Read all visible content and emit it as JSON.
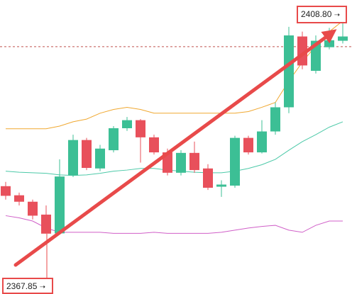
{
  "chart_data": {
    "type": "candlestick",
    "ylim": [
      2356.6,
      2411.4
    ],
    "up_color": "#3cbf95",
    "down_color": "#e8505b",
    "open": [
      2376.7,
      2375.0,
      2373.8,
      2371.4,
      2367.9,
      2378.7,
      2385.3,
      2380.0,
      2383.4,
      2387.5,
      2389.0,
      2385.8,
      2383.0,
      2379.2,
      2382.9,
      2380.0,
      2376.6,
      2376.8,
      2385.7,
      2383.0,
      2386.9,
      2391.4,
      2404.6,
      2398.2,
      2402.6,
      2403.8
    ],
    "high": [
      2377.5,
      2375.5,
      2374.2,
      2373.1,
      2381.7,
      2386.3,
      2385.7,
      2384.4,
      2387.9,
      2389.6,
      2389.2,
      2386.3,
      2383.7,
      2383.4,
      2385.0,
      2380.8,
      2377.8,
      2386.1,
      2386.1,
      2389.0,
      2392.3,
      2406.4,
      2405.5,
      2404.8,
      2406.2,
      2408.8
    ],
    "low": [
      2374.2,
      2373.1,
      2370.5,
      2367.85,
      2367.9,
      2378.4,
      2379.7,
      2379.5,
      2383.0,
      2387.0,
      2381.1,
      2382.6,
      2378.7,
      2378.7,
      2379.2,
      2376.0,
      2374.7,
      2376.4,
      2382.6,
      2382.8,
      2386.3,
      2390.3,
      2398.5,
      2397.7,
      2402.2,
      2403.3
    ],
    "close": [
      2374.9,
      2373.8,
      2371.2,
      2367.85,
      2378.5,
      2385.3,
      2380.1,
      2383.7,
      2387.5,
      2389.0,
      2385.8,
      2383.0,
      2379.2,
      2382.9,
      2379.7,
      2376.4,
      2377.0,
      2385.7,
      2383.0,
      2386.9,
      2391.4,
      2404.8,
      2399.2,
      2403.8,
      2403.9,
      2404.6
    ],
    "bands": [
      {
        "color": "#f0a830",
        "values": [
          2387.4,
          2387.4,
          2387.4,
          2387.4,
          2387.9,
          2388.7,
          2389.2,
          2390.3,
          2391.0,
          2391.4,
          2391.0,
          2390.3,
          2390.3,
          2390.3,
          2390.3,
          2390.3,
          2390.3,
          2390.3,
          2390.6,
          2391.4,
          2392.3,
          2396.3,
          2399.8,
          2402.9,
          2405.5,
          2407.5
        ]
      },
      {
        "color": "#4cc9a8",
        "values": [
          2379.5,
          2379.3,
          2379.2,
          2379.1,
          2378.8,
          2378.7,
          2378.8,
          2379.1,
          2379.5,
          2379.7,
          2380.0,
          2380.0,
          2379.7,
          2379.5,
          2379.3,
          2379.2,
          2379.2,
          2379.5,
          2380.0,
          2380.7,
          2381.7,
          2383.4,
          2385.0,
          2386.3,
          2387.7,
          2388.7
        ]
      },
      {
        "color": "#d05fc8",
        "values": [
          2371.2,
          2370.8,
          2370.2,
          2368.9,
          2368.1,
          2368.1,
          2368.1,
          2368.1,
          2367.9,
          2367.9,
          2367.9,
          2368.1,
          2367.9,
          2367.9,
          2367.9,
          2367.9,
          2368.1,
          2368.5,
          2368.9,
          2369.2,
          2369.4,
          2368.5,
          2368.1,
          2369.4,
          2370.2,
          2370.2
        ]
      }
    ],
    "current_price": 2402.7,
    "high_label": "2408.80",
    "low_label": "2367.85"
  }
}
